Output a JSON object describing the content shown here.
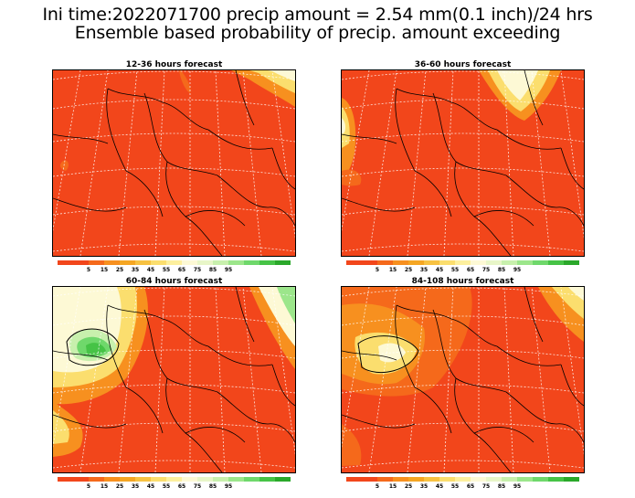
{
  "title_line1": "Ini time:2022071700 precip amount = 2.54 mm(0.1 inch)/24 hrs",
  "title_line2": "Ensemble based probability of precip. amount exceeding",
  "panels": [
    {
      "title": "12-36 hours forecast"
    },
    {
      "title": "36-60 hours forecast"
    },
    {
      "title": "60-84 hours forecast"
    },
    {
      "title": "84-108 hours forecast"
    }
  ],
  "colorbar": {
    "colors": [
      "#f2461b",
      "#f2461b",
      "#f5691b",
      "#f7901f",
      "#f5a623",
      "#f7c242",
      "#fbde6e",
      "#fdf09e",
      "#fdf9d5",
      "#e8f6c8",
      "#c8f0ad",
      "#9ce68b",
      "#6fd86b",
      "#46c346",
      "#2aa82a"
    ],
    "labels": [
      "5",
      "15",
      "25",
      "35",
      "45",
      "55",
      "65",
      "75",
      "85",
      "95"
    ]
  },
  "colors": {
    "base": "#f2461b",
    "orange": "#f5691b",
    "light_orange": "#f7901f",
    "yellow": "#fbde6e",
    "pale": "#fdf9d5",
    "light_green": "#9ce68b",
    "green": "#46c346"
  }
}
